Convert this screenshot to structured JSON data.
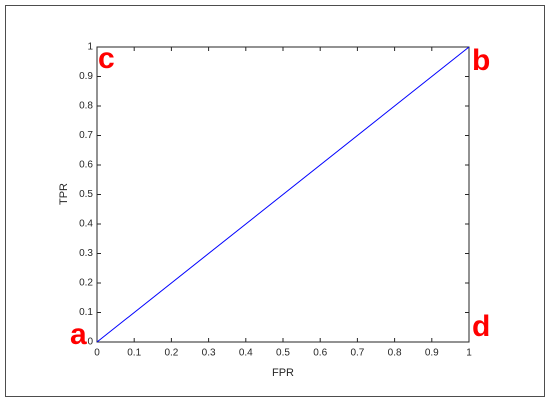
{
  "chart_data": {
    "type": "line",
    "x_label": "FPR",
    "y_label": "TPR",
    "x": [
      0,
      1
    ],
    "series": [
      {
        "color": "#0000ff",
        "values": [
          0,
          1
        ]
      }
    ],
    "xlim": [
      0,
      1
    ],
    "ylim": [
      0,
      1
    ],
    "xticks": [
      0,
      0.1,
      0.2,
      0.3,
      0.4,
      0.5,
      0.6,
      0.7,
      0.8,
      0.9,
      1
    ],
    "yticks": [
      0,
      0.1,
      0.2,
      0.3,
      0.4,
      0.5,
      0.6,
      0.7,
      0.8,
      0.9,
      1
    ],
    "grid": false,
    "annotations": [
      "a",
      "b",
      "c",
      "d"
    ],
    "annotation_color": "#ff0000"
  }
}
